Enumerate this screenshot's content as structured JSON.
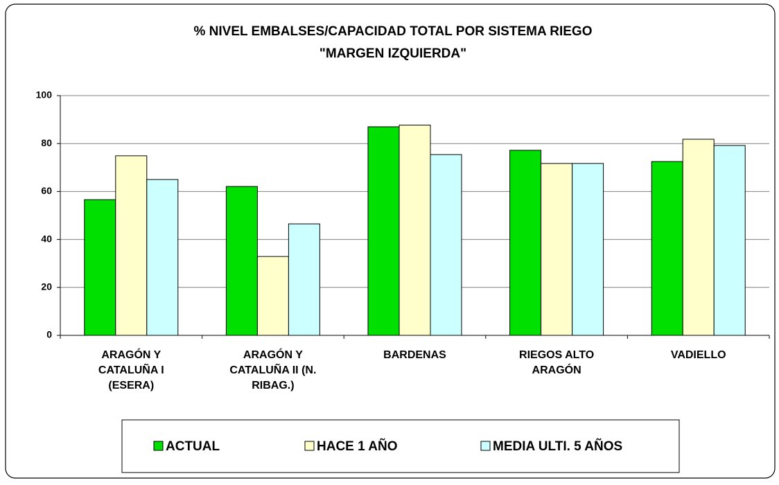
{
  "chart_data": {
    "type": "bar",
    "title": "% NIVEL EMBALSES/CAPACIDAD TOTAL POR SISTEMA  RIEGO",
    "subtitle": "\"MARGEN IZQUIERDA\"",
    "categories": [
      "ARAGÓN Y CATALUÑA I (ESERA)",
      "ARAGÓN Y CATALUÑA II (N. RIBAG.)",
      "BARDENAS",
      "RIEGOS ALTO ARAGÓN",
      "VADIELLO"
    ],
    "series": [
      {
        "name": "ACTUAL",
        "color": "#00e000",
        "values": [
          56.6,
          62.1,
          87,
          77.2,
          72.5
        ]
      },
      {
        "name": "HACE 1 AÑO",
        "color": "#ffffcc",
        "values": [
          74.9,
          32.9,
          87.7,
          71.7,
          81.8
        ]
      },
      {
        "name": "MEDIA  ULTI. 5 AÑOS",
        "color": "#ccffff",
        "values": [
          65,
          46.5,
          75.4,
          71.7,
          79.2
        ]
      }
    ],
    "ylim": [
      0,
      100
    ],
    "yticks": [
      0,
      20,
      40,
      60,
      80,
      100
    ],
    "grid": true
  }
}
